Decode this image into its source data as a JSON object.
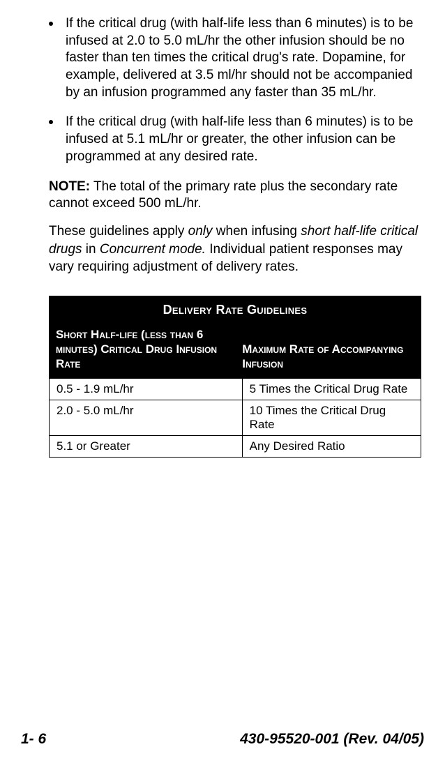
{
  "bullets": [
    "If the critical drug (with half-life less than 6 minutes) is to be infused at 2.0 to 5.0 mL/hr the other infusion should be no faster than ten times the critical drug's rate. Dopamine, for example, delivered at 3.5 ml/hr should not be accompanied by an infusion programmed any faster than 35 mL/hr.",
    "If the critical drug (with half-life less than 6 minutes) is to be infused at 5.1 mL/hr or greater, the other infusion can be programmed at any desired rate."
  ],
  "note": {
    "label": "NOTE:",
    "text": " The total of the primary rate plus the secondary rate cannot exceed 500 mL/hr."
  },
  "guidelines_sentence": {
    "pre": "These guidelines apply ",
    "only": "only",
    "mid1": " when infusing ",
    "phrase": "short half-life critical drugs",
    "mid2": " in ",
    "mode": "Concurrent mode.",
    "post": " Individual patient responses may vary requiring adjustment of delivery rates."
  },
  "table": {
    "title": "Delivery Rate Guidelines",
    "col1_header": "Short Half-life (less than 6 minutes) Critical Drug Infusion Rate",
    "col2_header": "Maximum Rate of Accompanying Infusion",
    "rows": [
      {
        "c1": "0.5 - 1.9 mL/hr",
        "c2": "5 Times the Critical Drug Rate"
      },
      {
        "c1": "2.0 - 5.0 mL/hr",
        "c2": "10 Times the Critical Drug Rate"
      },
      {
        "c1": "5.1 or Greater",
        "c2": "Any Desired Ratio"
      }
    ]
  },
  "footer": {
    "page": "1- 6",
    "doc": "430-95520-001 (Rev. 04/05)"
  }
}
